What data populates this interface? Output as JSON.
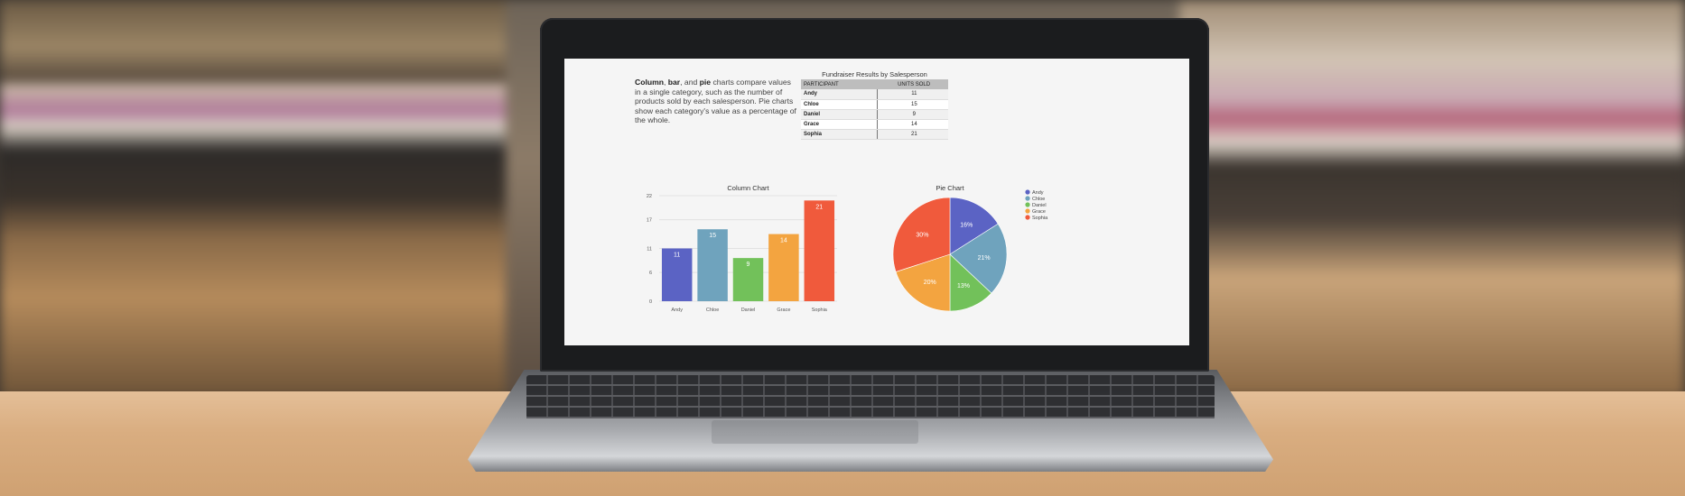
{
  "screen": {
    "blurb": {
      "bold1": "Column",
      "t1": ", ",
      "bold2": "bar",
      "t2": ", and ",
      "bold3": "pie",
      "t3": " charts compare values in a single category, such as the number of products sold by each salesperson. Pie charts show each category's value as a percentage of the whole."
    },
    "table": {
      "title": "Fundraiser Results by Salesperson",
      "headers": [
        "PARTICIPANT",
        "UNITS SOLD"
      ],
      "rows": [
        [
          "Andy",
          "11"
        ],
        [
          "Chloe",
          "15"
        ],
        [
          "Daniel",
          "9"
        ],
        [
          "Grace",
          "14"
        ],
        [
          "Sophia",
          "21"
        ]
      ]
    }
  },
  "chart_data": [
    {
      "type": "bar",
      "title": "Column Chart",
      "categories": [
        "Andy",
        "Chloe",
        "Daniel",
        "Grace",
        "Sophia"
      ],
      "values": [
        11,
        15,
        9,
        14,
        21
      ],
      "data_labels": [
        "11",
        "15",
        "9",
        "14",
        "21"
      ],
      "yticks": [
        0,
        6,
        11,
        17,
        22
      ],
      "ylim": [
        0,
        22
      ],
      "grid": true,
      "colors": [
        "#5b63c4",
        "#6fa3bd",
        "#72c15a",
        "#f3a440",
        "#f05a3c"
      ]
    },
    {
      "type": "pie",
      "title": "Pie Chart",
      "categories": [
        "Andy",
        "Chloe",
        "Daniel",
        "Grace",
        "Sophia"
      ],
      "values": [
        16,
        21,
        13,
        20,
        30
      ],
      "data_labels": [
        "16%",
        "21%",
        "13%",
        "20%",
        "30%"
      ],
      "legend": "right",
      "colors": [
        "#5b63c4",
        "#6fa3bd",
        "#72c15a",
        "#f3a440",
        "#f05a3c"
      ]
    }
  ]
}
